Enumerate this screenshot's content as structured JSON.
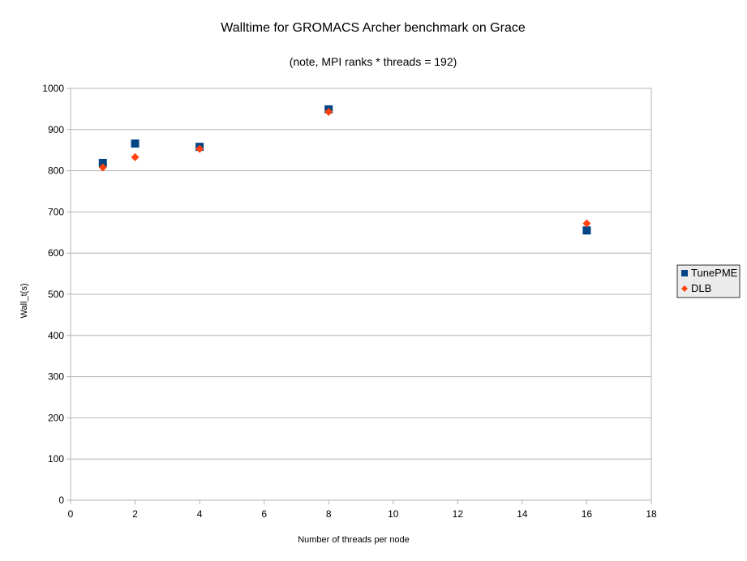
{
  "chart_data": {
    "type": "scatter",
    "title": "Walltime for GROMACS Archer benchmark on Grace",
    "subtitle": "(note, MPI ranks * threads = 192)",
    "xlabel": "Number of threads per node",
    "ylabel": "Wall_t(s)",
    "xlim": [
      0,
      18
    ],
    "ylim": [
      0,
      1000
    ],
    "xticks": [
      0,
      2,
      4,
      6,
      8,
      10,
      12,
      14,
      16,
      18
    ],
    "yticks": [
      0,
      100,
      200,
      300,
      400,
      500,
      600,
      700,
      800,
      900,
      1000
    ],
    "grid": "horizontal",
    "legend": "right",
    "series": [
      {
        "name": "TunePME",
        "marker": "square",
        "color": "#004586",
        "points": [
          {
            "x": 1,
            "y": 819
          },
          {
            "x": 2,
            "y": 866
          },
          {
            "x": 4,
            "y": 858
          },
          {
            "x": 8,
            "y": 949
          },
          {
            "x": 16,
            "y": 655
          }
        ]
      },
      {
        "name": "DLB",
        "marker": "diamond",
        "color": "#ff420e",
        "points": [
          {
            "x": 1,
            "y": 808
          },
          {
            "x": 2,
            "y": 833
          },
          {
            "x": 4,
            "y": 853
          },
          {
            "x": 8,
            "y": 943
          },
          {
            "x": 16,
            "y": 672
          }
        ]
      }
    ]
  }
}
